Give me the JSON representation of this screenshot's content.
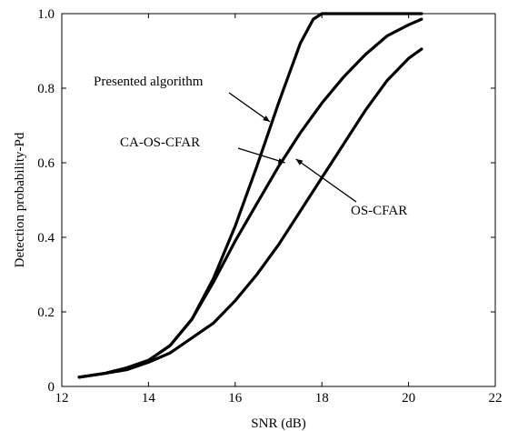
{
  "chart_data": {
    "type": "line",
    "title": "",
    "xlabel": "SNR (dB)",
    "ylabel": "Detection probability-Pd",
    "xlim": [
      12,
      22
    ],
    "ylim": [
      0,
      1.0
    ],
    "xticks": [
      "12",
      "14",
      "16",
      "18",
      "20",
      "22"
    ],
    "yticks": [
      "0",
      "0.2",
      "0.4",
      "0.6",
      "0.8",
      "1.0"
    ],
    "grid": false,
    "legend": "none",
    "series": [
      {
        "name": "Presented algorithm",
        "x": [
          12.4,
          13.0,
          13.5,
          14.0,
          14.5,
          15.0,
          15.5,
          16.0,
          16.5,
          17.0,
          17.5,
          17.8,
          18.0,
          18.2,
          19.0,
          20.0,
          20.3
        ],
        "y": [
          0.025,
          0.035,
          0.05,
          0.07,
          0.11,
          0.18,
          0.29,
          0.43,
          0.59,
          0.76,
          0.92,
          0.985,
          1.0,
          1.0,
          1.0,
          1.0,
          1.0
        ]
      },
      {
        "name": "CA-OS-CFAR",
        "x": [
          12.4,
          13.0,
          13.5,
          14.0,
          14.5,
          15.0,
          15.5,
          16.0,
          16.5,
          17.0,
          17.5,
          18.0,
          18.5,
          19.0,
          19.5,
          20.0,
          20.3
        ],
        "y": [
          0.025,
          0.035,
          0.05,
          0.07,
          0.11,
          0.18,
          0.28,
          0.39,
          0.49,
          0.59,
          0.68,
          0.76,
          0.83,
          0.89,
          0.94,
          0.97,
          0.985
        ]
      },
      {
        "name": "OS-CFAR",
        "x": [
          12.4,
          13.0,
          13.5,
          14.0,
          14.5,
          15.0,
          15.5,
          16.0,
          16.5,
          17.0,
          17.5,
          18.0,
          18.5,
          19.0,
          19.5,
          20.0,
          20.3
        ],
        "y": [
          0.025,
          0.035,
          0.045,
          0.065,
          0.09,
          0.13,
          0.17,
          0.23,
          0.3,
          0.38,
          0.47,
          0.56,
          0.65,
          0.74,
          0.82,
          0.88,
          0.905
        ]
      }
    ],
    "annotations": [
      {
        "text": "Presented algorithm",
        "arrow_to": {
          "x": 16.8,
          "y": 0.71
        }
      },
      {
        "text": "CA-OS-CFAR",
        "arrow_to": {
          "x": 17.15,
          "y": 0.6
        }
      },
      {
        "text": "OS-CFAR",
        "arrow_to": {
          "x": 17.4,
          "y": 0.61
        }
      }
    ]
  }
}
